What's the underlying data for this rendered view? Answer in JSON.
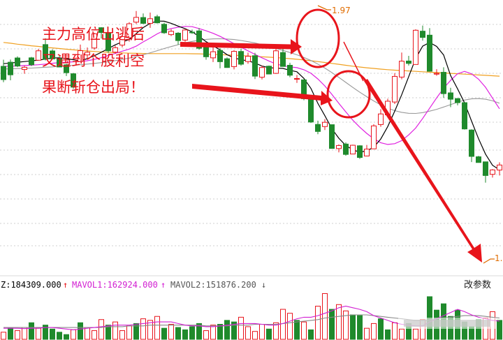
{
  "chart_data": {
    "type": "candlestick",
    "annotation_lines": [
      "主力高位出逃后",
      "又遇到个股利空",
      "果断斩仓出局！"
    ],
    "high_label": "1.97",
    "low_label": "1.",
    "volume_info": {
      "vol_label": "Z:184309.000",
      "mavol1_label": "MAVOL1:162924.000",
      "mavol2_label": "MAVOL2:151876.200"
    },
    "params_button": "改参数",
    "colors": {
      "up": "#e8141b",
      "down": "#1f8a2c",
      "ma5": "#000000",
      "ma10": "#e020e0",
      "ma20": "#999999",
      "ma60": "#f0a020"
    },
    "candles": [
      [
        0,
        300.0,
        290,
        288,
        305
      ],
      [
        1,
        303.1,
        293.6,
        289.5,
        305.1
      ],
      [
        2,
        306.3,
        300.2,
        299.4,
        307.5
      ],
      [
        3,
        297.6,
        299.3,
        294.4,
        300.3
      ],
      [
        4,
        306.4,
        301.2,
        300.2,
        307.1
      ],
      [
        5,
        304.6,
        311.7,
        304.6,
        313.1
      ],
      [
        6,
        316.4,
        305.3,
        304.4,
        321.1
      ],
      [
        7,
        311.6,
        305.6,
        305.5,
        312.8
      ],
      [
        8,
        305.6,
        299.5,
        299.3,
        307.7
      ],
      [
        9,
        301.1,
        295.2,
        292.7,
        301.9
      ],
      [
        10,
        294.4,
        284.3,
        283.1,
        295.0
      ],
      [
        11,
        303.6,
        311.8,
        303.6,
        316.4
      ],
      [
        12,
        308.6,
        310.6,
        306.2,
        314.2
      ],
      [
        13,
        313.8,
        324.5,
        312.5,
        325.3
      ],
      [
        14,
        329.1,
        325.5,
        321.0,
        329.5
      ],
      [
        15,
        325.0,
        311.7,
        310.1,
        325.4
      ],
      [
        16,
        310.7,
        314.0,
        309.6,
        315.6
      ],
      [
        17,
        316.0,
        322.4,
        314.3,
        323.3
      ],
      [
        18,
        321.6,
        332.1,
        318.6,
        333.3
      ],
      [
        19,
        333.3,
        336.9,
        331.9,
        341.7
      ],
      [
        20,
        336.8,
        332.4,
        331.8,
        339.9
      ],
      [
        21,
        332.4,
        335.9,
        329.0,
        340.5
      ],
      [
        22,
        337.4,
        332.8,
        332.3,
        338.9
      ],
      [
        23,
        331.7,
        325.3,
        324.5,
        332.9
      ],
      [
        24,
        323.9,
        326.4,
        322.8,
        328.0
      ],
      [
        25,
        325.0,
        319.4,
        316.4,
        325.8
      ],
      [
        26,
        319.8,
        327.4,
        318.6,
        327.9
      ],
      [
        27,
        325.8,
        325.5,
        324.5,
        327.7
      ],
      [
        28,
        326.7,
        313.6,
        312.5,
        328.8
      ],
      [
        29,
        315.8,
        307.2,
        305.0,
        317.3
      ],
      [
        30,
        306.4,
        311.0,
        303.2,
        314.2
      ],
      [
        31,
        312.0,
        303.5,
        298.5,
        313.6
      ],
      [
        32,
        305.7,
        299.1,
        298.9,
        306.7
      ],
      [
        33,
        299.8,
        311.3,
        297.7,
        312.2
      ],
      [
        34,
        311.2,
        301.6,
        300.5,
        313.3
      ],
      [
        35,
        303.6,
        307.6,
        301.9,
        310.3
      ],
      [
        36,
        308.0,
        292.6,
        290.4,
        310.2
      ],
      [
        37,
        291.8,
        299.1,
        290.1,
        300.5
      ],
      [
        38,
        300.1,
        294.2,
        294.0,
        300.6
      ],
      [
        39,
        294.7,
        311.7,
        294.3,
        314.4
      ],
      [
        40,
        310.4,
        299.9,
        299.9,
        313.4
      ],
      [
        41,
        300.8,
        293.3,
        291.8,
        302.7
      ],
      [
        42,
        290.7,
        290.8,
        287.5,
        293.5
      ],
      [
        43,
        289.8,
        275.6,
        274.4,
        290.1
      ],
      [
        44,
        275.6,
        258.0,
        257.3,
        277.8
      ],
      [
        45,
        256.2,
        250.9,
        248.8,
        259.0
      ],
      [
        46,
        254.6,
        257.8,
        252.0,
        260.2
      ],
      [
        47,
        256.0,
        238.1,
        238.0,
        256.0
      ],
      [
        48,
        238.0,
        240.3,
        235.1,
        241.2
      ],
      [
        49,
        241.4,
        233.6,
        232.6,
        242.6
      ],
      [
        50,
        233.9,
        240.5,
        233.7,
        240.9
      ],
      [
        51,
        240.1,
        231.3,
        230.2,
        240.5
      ],
      [
        52,
        232.4,
        237.6,
        232.1,
        240.7
      ],
      [
        53,
        237.8,
        255.1,
        237.7,
        256.4
      ],
      [
        54,
        256.1,
        264.1,
        254.4,
        267.7
      ],
      [
        55,
        263.4,
        273.7,
        263.4,
        275.6
      ],
      [
        56,
        273.1,
        292.4,
        271.6,
        294.9
      ],
      [
        57,
        291.9,
        303.9,
        290.2,
        310.4
      ],
      [
        58,
        304.0,
        302.2,
        300.6,
        307.9
      ],
      [
        59,
        301.4,
        327.2,
        301.3,
        327.9
      ],
      [
        60,
        326.5,
        321.8,
        319.4,
        330.7
      ],
      [
        61,
        323.5,
        296.3,
        296.0,
        328.8
      ],
      [
        62,
        294.1,
        294.7,
        292.9,
        297.8
      ],
      [
        63,
        295.5,
        279.4,
        276.2,
        299.3
      ],
      [
        64,
        280.0,
        275.2,
        269.2,
        283.8
      ],
      [
        65,
        275.7,
        272.6,
        270.6,
        276.0
      ],
      [
        66,
        272.6,
        252.8,
        252.3,
        273.0
      ],
      [
        67,
        252.0,
        232.1,
        227.8,
        252.5
      ],
      [
        68,
        231.8,
        227.5,
        227.4,
        232.5
      ],
      [
        69,
        228.0,
        217.7,
        212.3,
        228.1
      ],
      [
        70,
        218.6,
        221.9,
        216.1,
        222.5
      ],
      [
        71,
        221.8,
        225.6,
        217.7,
        227.6
      ]
    ],
    "candles_note": "each candle = [index, open, close, low, high] in price units",
    "ma5": [
      302,
      302.5,
      303.1,
      303.6,
      304.1,
      304.7,
      305.4,
      306.3,
      306.4,
      305.8,
      305.0,
      304.2,
      305.8,
      308.0,
      310.6,
      313.4,
      316.2,
      318.4,
      320.2,
      324.7,
      329.2,
      332.4,
      334.1,
      334.0,
      332.4,
      330.3,
      328.4,
      326.0,
      322.6,
      318.6,
      315.4,
      312.4,
      308.8,
      306.4,
      304.9,
      304.2,
      302.5,
      300.2,
      299.0,
      298.6,
      298.4,
      297.0,
      295.9,
      290.9,
      283.4,
      272.1,
      262.8,
      253.0,
      245.8,
      240.3,
      237.1,
      235.2,
      236.3,
      239.0,
      245.2,
      254.6,
      266.2,
      278.6,
      292.2,
      305.9,
      315.2,
      318.0,
      315.0,
      308.6,
      293.0,
      283.0,
      272.4,
      258.7,
      245.4,
      233.8,
      225.4,
      222.0
    ],
    "ma10": [
      300,
      300.1,
      300.3,
      300.6,
      300.9,
      301.2,
      301.7,
      302.3,
      302.8,
      303.1,
      303.4,
      303.6,
      304.2,
      305.2,
      306.5,
      308.2,
      309.7,
      311.4,
      313.0,
      315.2,
      318.4,
      321.3,
      324.5,
      327.0,
      328.5,
      329.5,
      330.1,
      329.9,
      328.5,
      326.8,
      324.9,
      322.6,
      319.9,
      317.1,
      314.4,
      311.7,
      309.0,
      306.4,
      304.0,
      301.8,
      300.5,
      299.6,
      299.0,
      297.4,
      294.8,
      290.5,
      285.2,
      278.9,
      272.1,
      265.7,
      259.4,
      254.1,
      249.4,
      245.4,
      242.4,
      241.1,
      241.7,
      244.0,
      248.3,
      253.5,
      260.7,
      268.5,
      276.2,
      283.5,
      289.4,
      294.4,
      296.2,
      294.3,
      290.3,
      284.2,
      276.0,
      268.0
    ],
    "ma20": [
      298,
      298.1,
      298.3,
      298.5,
      298.7,
      299.0,
      299.3,
      299.6,
      300.0,
      300.4,
      300.8,
      301.2,
      301.7,
      302.2,
      302.8,
      303.5,
      304.3,
      305.2,
      306.2,
      307.4,
      308.7,
      310.2,
      311.8,
      313.4,
      314.9,
      316.3,
      317.7,
      318.8,
      319.7,
      320.3,
      320.7,
      320.8,
      320.6,
      320.2,
      319.5,
      318.6,
      317.6,
      316.3,
      315.0,
      313.5,
      312.0,
      310.4,
      308.7,
      306.7,
      304.4,
      301.7,
      298.7,
      295.3,
      291.7,
      287.9,
      284.1,
      280.5,
      277.1,
      273.9,
      271.0,
      268.5,
      266.6,
      265.3,
      264.6,
      264.5,
      265.1,
      266.2,
      267.6,
      269.3,
      271.1,
      273.0,
      274.6,
      275.5,
      275.7,
      275.2,
      274.0,
      272.2
    ],
    "ma60": [
      318.0,
      317.4,
      316.7,
      316.1,
      315.5,
      315.0,
      314.4,
      313.9,
      313.4,
      312.9,
      312.4,
      312.0,
      311.6,
      311.2,
      310.9,
      310.6,
      310.3,
      310.1,
      309.9,
      309.8,
      309.7,
      309.6,
      309.6,
      309.6,
      309.6,
      309.6,
      309.6,
      309.5,
      309.4,
      309.2,
      309.0,
      308.8,
      308.6,
      308.4,
      308.1,
      307.8,
      307.5,
      307.2,
      306.9,
      306.6,
      306.2,
      305.8,
      305.3,
      304.8,
      304.2,
      303.6,
      302.9,
      302.2,
      301.5,
      300.8,
      300.1,
      299.5,
      298.9,
      298.4,
      297.9,
      297.5,
      297.1,
      296.8,
      296.5,
      296.2,
      295.9,
      295.6,
      295.3,
      295.0,
      294.7,
      294.4,
      294.1,
      293.8,
      293.5,
      293.2,
      292.9,
      292.6
    ],
    "volume": [
      [
        0,
        9,
        1
      ],
      [
        1,
        14,
        0
      ],
      [
        2,
        11,
        1
      ],
      [
        3,
        15,
        1
      ],
      [
        4,
        21,
        0
      ],
      [
        5,
        14,
        1
      ],
      [
        6,
        18,
        0
      ],
      [
        7,
        13,
        0
      ],
      [
        8,
        9,
        0
      ],
      [
        9,
        6,
        0
      ],
      [
        10,
        12,
        1
      ],
      [
        11,
        21,
        0
      ],
      [
        12,
        15,
        1
      ],
      [
        13,
        11,
        1
      ],
      [
        14,
        25,
        1
      ],
      [
        15,
        18,
        0
      ],
      [
        16,
        22,
        1
      ],
      [
        17,
        11,
        1
      ],
      [
        18,
        17,
        1
      ],
      [
        19,
        20,
        0
      ],
      [
        20,
        26,
        1
      ],
      [
        21,
        24,
        1
      ],
      [
        22,
        29,
        1
      ],
      [
        23,
        14,
        0
      ],
      [
        24,
        19,
        1
      ],
      [
        25,
        15,
        0
      ],
      [
        26,
        12,
        0
      ],
      [
        27,
        16,
        0
      ],
      [
        28,
        20,
        0
      ],
      [
        29,
        11,
        1
      ],
      [
        30,
        18,
        1
      ],
      [
        31,
        19,
        0
      ],
      [
        32,
        24,
        0
      ],
      [
        33,
        22,
        0
      ],
      [
        34,
        28,
        1
      ],
      [
        35,
        16,
        1
      ],
      [
        36,
        10,
        1
      ],
      [
        37,
        19,
        1
      ],
      [
        38,
        13,
        0
      ],
      [
        39,
        21,
        1
      ],
      [
        40,
        38,
        1
      ],
      [
        41,
        33,
        1
      ],
      [
        42,
        24,
        0
      ],
      [
        43,
        22,
        1
      ],
      [
        44,
        12,
        0
      ],
      [
        45,
        42,
        1
      ],
      [
        46,
        58,
        1
      ],
      [
        47,
        38,
        0
      ],
      [
        48,
        44,
        1
      ],
      [
        49,
        36,
        1
      ],
      [
        50,
        31,
        0
      ],
      [
        51,
        30,
        0
      ],
      [
        52,
        14,
        1
      ],
      [
        53,
        20,
        1
      ],
      [
        54,
        26,
        0
      ],
      [
        55,
        12,
        0
      ],
      [
        56,
        21,
        1
      ],
      [
        57,
        13,
        1
      ],
      [
        58,
        20,
        0
      ],
      [
        59,
        13,
        1
      ],
      [
        60,
        25,
        1
      ],
      [
        61,
        54,
        0
      ],
      [
        62,
        37,
        0
      ],
      [
        63,
        45,
        0
      ],
      [
        64,
        29,
        0
      ],
      [
        65,
        37,
        0
      ],
      [
        66,
        22,
        0
      ],
      [
        67,
        16,
        0
      ],
      [
        68,
        25,
        0
      ],
      [
        69,
        27,
        1
      ],
      [
        70,
        35,
        1
      ],
      [
        71,
        24,
        0
      ]
    ],
    "volume_note": "each bar = [index, volume, up(1)/down(0)]",
    "mavol1": [
      14,
      14,
      14,
      13.5,
      14,
      14,
      15,
      15,
      14,
      13,
      12,
      13,
      14,
      15,
      16,
      17,
      18,
      18,
      18,
      19,
      20,
      21,
      22,
      22,
      22,
      20,
      18,
      17,
      17,
      16,
      16,
      17,
      18,
      19,
      20,
      20,
      20,
      19,
      18,
      18,
      20,
      23,
      26,
      28,
      28,
      30,
      33,
      36,
      40,
      42,
      40,
      38,
      35,
      30,
      27,
      24,
      21,
      19,
      18,
      17,
      17,
      22,
      26,
      30,
      34,
      38,
      35,
      31,
      28,
      26,
      24,
      23
    ],
    "mavol2": [
      15,
      15,
      15,
      15,
      15,
      15,
      15,
      15,
      15,
      15,
      15,
      15,
      15,
      15,
      15,
      16,
      16,
      16,
      17,
      17,
      17,
      18,
      18,
      18,
      18,
      18,
      18,
      18,
      18,
      17,
      17,
      17,
      17,
      18,
      18,
      18,
      19,
      19,
      19,
      19,
      20,
      21,
      22,
      23,
      24,
      25,
      27,
      28,
      29,
      30,
      31,
      31,
      31,
      30,
      29,
      28,
      27,
      26,
      25,
      24,
      24,
      25,
      26,
      27,
      28,
      29,
      30,
      30,
      30,
      29,
      28,
      27
    ]
  }
}
